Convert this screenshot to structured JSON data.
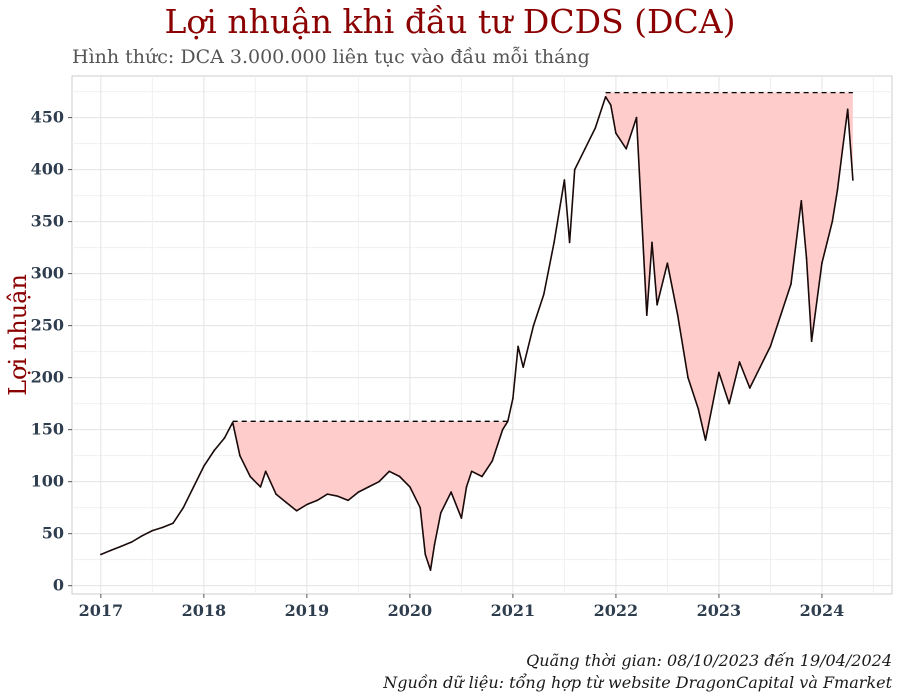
{
  "title": "Lợi nhuận khi đầu tư DCDS (DCA)",
  "subtitle": "Hình thức: DCA 3.000.000  liên tục vào đầu mỗi tháng",
  "caption_period": "Quãng thời gian: 08/10/2023 đến 19/04/2024",
  "caption_source": "Nguồn dữ liệu: tổng hợp từ website DragonCapital và Fmarket",
  "colors": {
    "title": "#8b0000",
    "drawdown_fill": "#ffcccc",
    "line": "#1a0a0a",
    "peak_line": "#000000"
  },
  "chart_data": {
    "type": "line",
    "title": "Lợi nhuận khi đầu tư DCDS (DCA)",
    "ylabel": "Lợi nhuận",
    "xlabel": "",
    "xlim": [
      2016.72,
      2024.68
    ],
    "ylim": [
      -8,
      490
    ],
    "x_ticks": [
      2017,
      2018,
      2019,
      2020,
      2021,
      2022,
      2023,
      2024
    ],
    "x_tick_labels": [
      "2017",
      "2018",
      "2019",
      "2020",
      "2021",
      "2022",
      "2023",
      "2024"
    ],
    "y_ticks": [
      0,
      50,
      100,
      150,
      200,
      250,
      300,
      350,
      400,
      450
    ],
    "y_tick_labels": [
      "0",
      "50",
      "100",
      "150",
      "200",
      "250",
      "300",
      "350",
      "400",
      "450"
    ],
    "grid": true,
    "series": [
      {
        "x": [
          2017.0,
          2017.1,
          2017.2,
          2017.3,
          2017.4,
          2017.5,
          2017.6,
          2017.7,
          2017.8,
          2017.9,
          2018.0,
          2018.1,
          2018.2,
          2018.28,
          2018.35,
          2018.45,
          2018.55,
          2018.6,
          2018.7,
          2018.8,
          2018.9,
          2019.0,
          2019.1,
          2019.2,
          2019.3,
          2019.4,
          2019.5,
          2019.6,
          2019.7,
          2019.8,
          2019.9,
          2020.0,
          2020.1,
          2020.15,
          2020.2,
          2020.24,
          2020.3,
          2020.4,
          2020.5,
          2020.55,
          2020.6,
          2020.7,
          2020.8,
          2020.9,
          2020.95,
          2021.0,
          2021.05,
          2021.1,
          2021.2,
          2021.3,
          2021.4,
          2021.5,
          2021.55,
          2021.6,
          2021.7,
          2021.8,
          2021.9,
          2021.95,
          2022.0,
          2022.1,
          2022.2,
          2022.3,
          2022.35,
          2022.4,
          2022.5,
          2022.6,
          2022.7,
          2022.8,
          2022.87,
          2022.95,
          2023.0,
          2023.1,
          2023.2,
          2023.3,
          2023.4,
          2023.5,
          2023.6,
          2023.7,
          2023.8,
          2023.85,
          2023.9,
          2024.0,
          2024.05,
          2024.1,
          2024.15,
          2024.2,
          2024.25,
          2024.3
        ],
        "y": [
          30,
          34,
          38,
          42,
          48,
          53,
          56,
          60,
          75,
          95,
          115,
          130,
          142,
          157,
          125,
          105,
          95,
          110,
          88,
          80,
          72,
          78,
          82,
          88,
          86,
          82,
          90,
          95,
          100,
          110,
          105,
          95,
          75,
          30,
          15,
          40,
          70,
          90,
          65,
          95,
          110,
          105,
          120,
          150,
          158,
          180,
          230,
          210,
          250,
          280,
          330,
          390,
          330,
          400,
          420,
          440,
          470,
          462,
          435,
          420,
          450,
          260,
          330,
          270,
          310,
          260,
          200,
          170,
          140,
          180,
          205,
          175,
          215,
          190,
          210,
          230,
          260,
          290,
          370,
          315,
          235,
          310,
          330,
          350,
          380,
          420,
          458,
          390
        ],
        "peak_x_start": [
          2018.28,
          2021.9
        ],
        "peak_x_end": [
          2020.95,
          2024.3
        ],
        "peak_value": [
          158,
          474
        ]
      }
    ]
  }
}
